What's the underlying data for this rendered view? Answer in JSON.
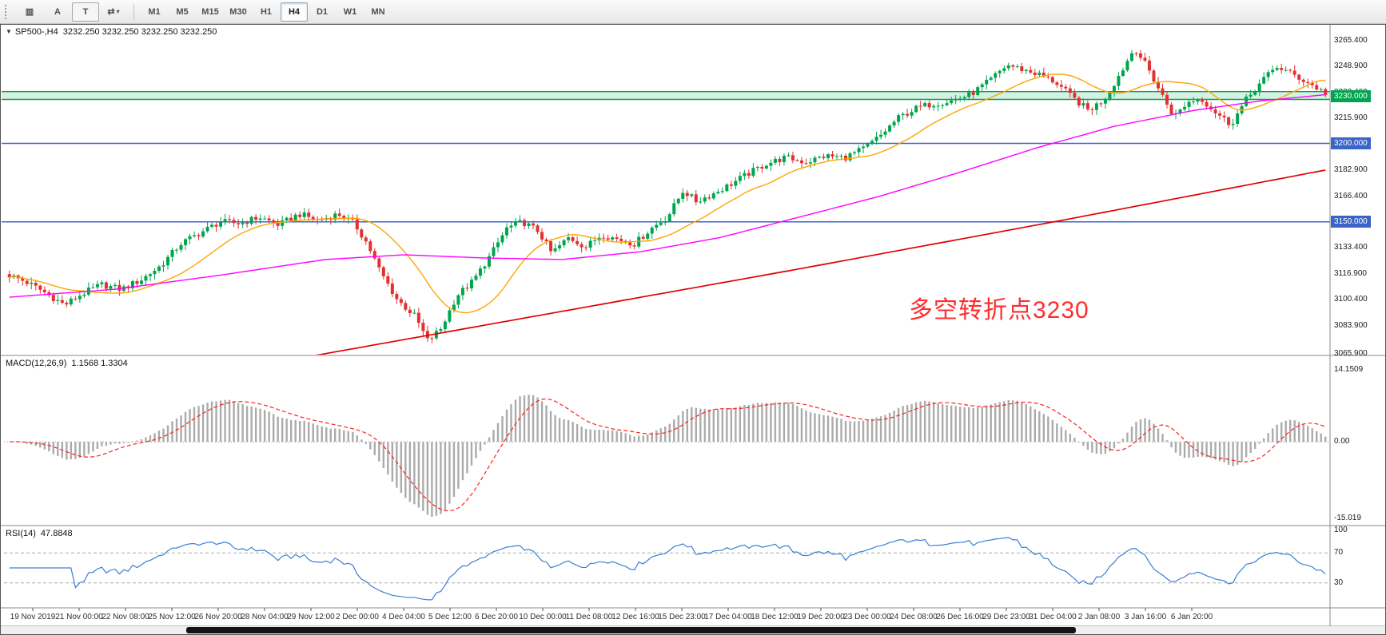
{
  "toolbar": {
    "tools": [
      {
        "name": "chart-style-icon",
        "glyph": "▥"
      },
      {
        "name": "text-a-tool",
        "glyph": "A"
      },
      {
        "name": "text-t-tool",
        "glyph": "T",
        "boxed": true
      },
      {
        "name": "cycle-tool-icon",
        "glyph": "⇄",
        "caret": "▾"
      }
    ],
    "timeframes": [
      "M1",
      "M5",
      "M15",
      "M30",
      "H1",
      "H4",
      "D1",
      "W1",
      "MN"
    ],
    "active_timeframe": "H4"
  },
  "chart": {
    "title": "SP500-,H4",
    "ohlc_text": "3232.250 3232.250 3232.250 3232.250",
    "annotation": {
      "text": "多空转折点3230",
      "color": "#ff2d2d"
    },
    "levels": [
      {
        "label": "3230.000",
        "value": 3230.0,
        "color": "#00A550",
        "type": "band",
        "band_low": 3228.0,
        "band_high": 3233.0
      },
      {
        "label": "3200.000",
        "value": 3200.0,
        "color": "#3A64C8",
        "type": "line"
      },
      {
        "label": "3150.000",
        "value": 3150.0,
        "color": "#3A64C8",
        "type": "line"
      }
    ],
    "price_axis_labels": [
      "3265.400",
      "3248.900",
      "3232.400",
      "3215.900",
      "3199.400",
      "3182.900",
      "3166.400",
      "3149.900",
      "3133.400",
      "3116.900",
      "3100.400",
      "3083.900",
      "3065.900"
    ]
  },
  "macd": {
    "label": "MACD(12,26,9)",
    "values": "1.1568 1.3304",
    "axis_labels": [
      "14.1509",
      "0.00",
      "-15.019"
    ]
  },
  "rsi": {
    "label": "RSI(14)",
    "value": "47.8848",
    "axis_labels": [
      "100",
      "70",
      "30"
    ],
    "levels": [
      70,
      30
    ]
  },
  "time_axis": {
    "labels": [
      "19 Nov 2019",
      "21 Nov 00:00",
      "22 Nov 08:00",
      "25 Nov 12:00",
      "26 Nov 20:00",
      "28 Nov 04:00",
      "29 Nov 12:00",
      "2 Dec 00:00",
      "4 Dec 04:00",
      "5 Dec 12:00",
      "6 Dec 20:00",
      "10 Dec 00:00",
      "11 Dec 08:00",
      "12 Dec 16:00",
      "15 Dec 23:00",
      "17 Dec 04:00",
      "18 Dec 12:00",
      "19 Dec 20:00",
      "23 Dec 00:00",
      "24 Dec 08:00",
      "26 Dec 16:00",
      "29 Dec 23:00",
      "31 Dec 04:00",
      "2 Jan 08:00",
      "3 Jan 16:00",
      "6 Jan 20:00"
    ]
  },
  "chart_data": {
    "type": "candlestick",
    "symbol": "SP500-",
    "timeframe": "H4",
    "bars": 300,
    "price_range": {
      "top_label": 3265.4,
      "bottom_label": 3065.9
    },
    "price_path": [
      [
        0.0,
        3116
      ],
      [
        0.012,
        3112
      ],
      [
        0.025,
        3106
      ],
      [
        0.042,
        3097
      ],
      [
        0.055,
        3104
      ],
      [
        0.07,
        3110
      ],
      [
        0.085,
        3107
      ],
      [
        0.1,
        3113
      ],
      [
        0.115,
        3122
      ],
      [
        0.13,
        3136
      ],
      [
        0.145,
        3143
      ],
      [
        0.16,
        3150
      ],
      [
        0.175,
        3149
      ],
      [
        0.19,
        3153
      ],
      [
        0.205,
        3148
      ],
      [
        0.22,
        3155
      ],
      [
        0.235,
        3151
      ],
      [
        0.25,
        3155
      ],
      [
        0.262,
        3149
      ],
      [
        0.272,
        3136
      ],
      [
        0.282,
        3118
      ],
      [
        0.295,
        3100
      ],
      [
        0.308,
        3090
      ],
      [
        0.318,
        3074
      ],
      [
        0.328,
        3082
      ],
      [
        0.34,
        3103
      ],
      [
        0.352,
        3112
      ],
      [
        0.365,
        3128
      ],
      [
        0.378,
        3146
      ],
      [
        0.39,
        3150
      ],
      [
        0.402,
        3144
      ],
      [
        0.412,
        3130
      ],
      [
        0.425,
        3140
      ],
      [
        0.438,
        3134
      ],
      [
        0.45,
        3142
      ],
      [
        0.462,
        3139
      ],
      [
        0.475,
        3136
      ],
      [
        0.488,
        3146
      ],
      [
        0.5,
        3153
      ],
      [
        0.512,
        3170
      ],
      [
        0.522,
        3163
      ],
      [
        0.535,
        3168
      ],
      [
        0.548,
        3174
      ],
      [
        0.56,
        3180
      ],
      [
        0.575,
        3187
      ],
      [
        0.59,
        3191
      ],
      [
        0.605,
        3188
      ],
      [
        0.62,
        3192
      ],
      [
        0.635,
        3191
      ],
      [
        0.65,
        3197
      ],
      [
        0.662,
        3205
      ],
      [
        0.675,
        3216
      ],
      [
        0.688,
        3222
      ],
      [
        0.7,
        3225
      ],
      [
        0.715,
        3227
      ],
      [
        0.73,
        3231
      ],
      [
        0.745,
        3240
      ],
      [
        0.758,
        3250
      ],
      [
        0.77,
        3247
      ],
      [
        0.782,
        3244
      ],
      [
        0.795,
        3239
      ],
      [
        0.808,
        3229
      ],
      [
        0.82,
        3221
      ],
      [
        0.832,
        3228
      ],
      [
        0.845,
        3246
      ],
      [
        0.855,
        3261
      ],
      [
        0.865,
        3248
      ],
      [
        0.875,
        3232
      ],
      [
        0.885,
        3217
      ],
      [
        0.895,
        3226
      ],
      [
        0.905,
        3229
      ],
      [
        0.915,
        3221
      ],
      [
        0.928,
        3212
      ],
      [
        0.94,
        3228
      ],
      [
        0.952,
        3240
      ],
      [
        0.963,
        3249
      ],
      [
        0.975,
        3244
      ],
      [
        0.988,
        3238
      ],
      [
        1.0,
        3232
      ]
    ],
    "ma_fast_period": 18,
    "ma_mid_path": [
      [
        0,
        3102
      ],
      [
        0.08,
        3107
      ],
      [
        0.16,
        3116
      ],
      [
        0.24,
        3126
      ],
      [
        0.3,
        3129
      ],
      [
        0.36,
        3127
      ],
      [
        0.42,
        3126
      ],
      [
        0.48,
        3131
      ],
      [
        0.54,
        3140
      ],
      [
        0.6,
        3153
      ],
      [
        0.66,
        3166
      ],
      [
        0.72,
        3181
      ],
      [
        0.78,
        3197
      ],
      [
        0.84,
        3211
      ],
      [
        0.9,
        3221
      ],
      [
        0.95,
        3227
      ],
      [
        1,
        3231
      ]
    ],
    "ma_slow_path": [
      [
        0,
        3030
      ],
      [
        0.2,
        3060
      ],
      [
        0.4,
        3090
      ],
      [
        0.6,
        3120
      ],
      [
        0.8,
        3151
      ],
      [
        1,
        3183
      ]
    ],
    "indicators": {
      "macd": {
        "fast": 12,
        "slow": 26,
        "signal": 9
      },
      "rsi": {
        "period": 14
      }
    },
    "colors": {
      "up": "#00A550",
      "down": "#E33030",
      "ma_fast": "#FFA500",
      "ma_mid": "#FF00FF",
      "ma_slow": "#E00000",
      "macd_hist": "#ABABAB",
      "macd_signal": "#FF2020",
      "rsi_line": "#3B7FD4",
      "level_green": "#00A550",
      "level_blue": "#3A64C8"
    }
  }
}
